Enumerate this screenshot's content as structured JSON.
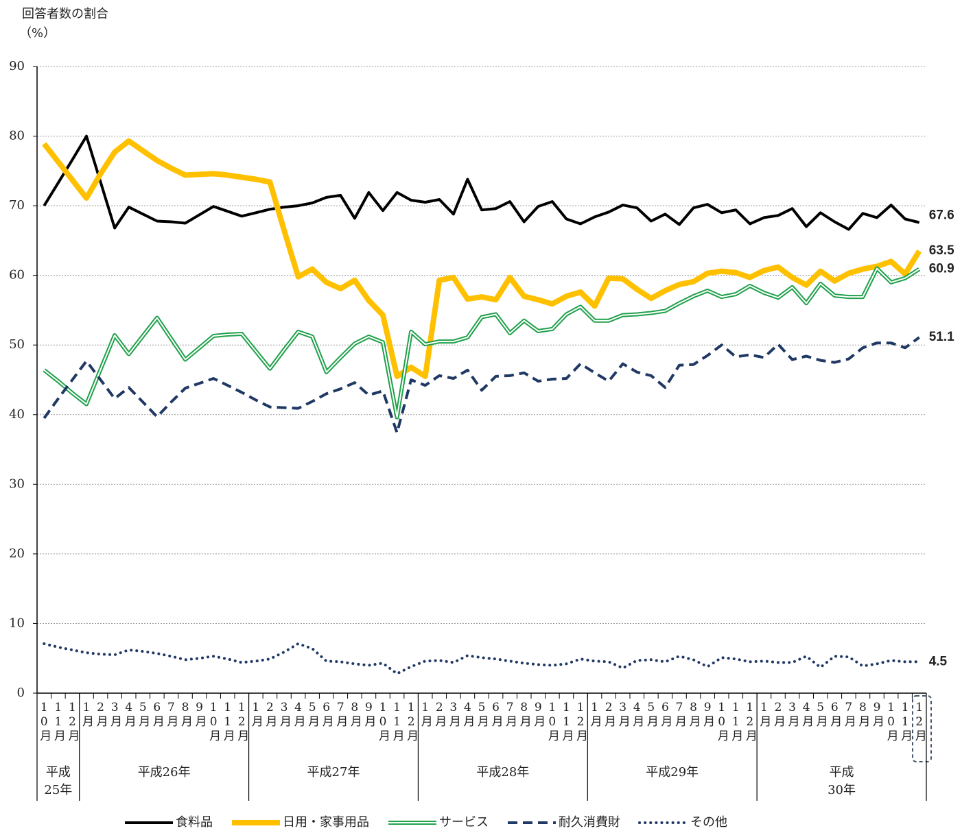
{
  "chart_data": {
    "type": "line",
    "y_label": "回答者数の割合",
    "y_unit": "（%）",
    "ylim": [
      0,
      90
    ],
    "yticks": [
      0,
      10,
      20,
      30,
      40,
      50,
      60,
      70,
      80,
      90
    ],
    "grid": true,
    "categories": [
      "10月",
      "11月",
      "12月",
      "1月",
      "2月",
      "3月",
      "4月",
      "5月",
      "6月",
      "7月",
      "8月",
      "9月",
      "10月",
      "11月",
      "12月",
      "1月",
      "2月",
      "3月",
      "4月",
      "5月",
      "6月",
      "7月",
      "8月",
      "9月",
      "10月",
      "11月",
      "12月",
      "1月",
      "2月",
      "3月",
      "4月",
      "5月",
      "6月",
      "7月",
      "8月",
      "9月",
      "10月",
      "11月",
      "12月",
      "1月",
      "2月",
      "3月",
      "4月",
      "5月",
      "6月",
      "7月",
      "8月",
      "9月",
      "10月",
      "11月",
      "12月",
      "1月",
      "2月",
      "3月",
      "4月",
      "5月",
      "6月",
      "7月",
      "8月",
      "9月",
      "10月",
      "11月",
      "12月"
    ],
    "year_labels": [
      "平成25年",
      "平成26年",
      "平成27年",
      "平成28年",
      "平成29年",
      "平成30年"
    ],
    "series": [
      {
        "name": "食料品",
        "color": "#000000",
        "style": "solid",
        "values": [
          70.0,
          73.3,
          76.6,
          80.0,
          73.4,
          66.8,
          69.8,
          68.8,
          67.8,
          67.7,
          67.5,
          68.7,
          69.9,
          69.2,
          68.5,
          69.0,
          69.5,
          69.8,
          70.0,
          70.4,
          71.2,
          71.5,
          68.2,
          71.9,
          69.3,
          71.9,
          70.8,
          70.5,
          70.9,
          68.8,
          73.8,
          69.4,
          69.6,
          70.6,
          67.7,
          69.9,
          70.6,
          68.1,
          67.4,
          68.4,
          69.1,
          70.1,
          69.7,
          67.8,
          68.8,
          67.3,
          69.7,
          70.2,
          69.0,
          69.4,
          67.4,
          68.3,
          68.6,
          69.6,
          67.0,
          69.0,
          67.7,
          66.6,
          68.9,
          68.3,
          70.1,
          68.1,
          67.6
        ]
      },
      {
        "name": "日用・家事用品",
        "color": "#ffc000",
        "style": "thick",
        "values": [
          78.9,
          76.3,
          73.7,
          71.1,
          74.6,
          77.7,
          79.3,
          77.9,
          76.5,
          75.4,
          74.4,
          74.5,
          74.6,
          74.4,
          74.1,
          73.8,
          73.4,
          66.5,
          59.8,
          60.9,
          59.0,
          58.1,
          59.3,
          56.4,
          54.3,
          45.5,
          46.8,
          45.5,
          59.3,
          59.7,
          56.6,
          56.9,
          56.5,
          59.7,
          57.0,
          56.5,
          55.9,
          57.0,
          57.6,
          55.6,
          59.6,
          59.5,
          58.0,
          56.7,
          57.8,
          58.7,
          59.1,
          60.3,
          60.6,
          60.4,
          59.7,
          60.7,
          61.2,
          59.7,
          58.6,
          60.6,
          59.2,
          60.3,
          60.9,
          61.3,
          62.0,
          60.2,
          63.5
        ]
      },
      {
        "name": "サービス",
        "color": "#1fa04a",
        "style": "double",
        "values": [
          46.4,
          44.8,
          43.1,
          41.5,
          46.5,
          51.4,
          48.7,
          51.3,
          53.9,
          50.9,
          47.9,
          49.6,
          51.3,
          51.5,
          51.6,
          49.1,
          46.6,
          49.3,
          51.9,
          51.2,
          46.1,
          48.2,
          50.2,
          51.2,
          50.4,
          39.6,
          51.9,
          50.1,
          50.5,
          50.5,
          51.1,
          54.0,
          54.4,
          51.7,
          53.5,
          52.0,
          52.3,
          54.4,
          55.5,
          53.5,
          53.5,
          54.3,
          54.4,
          54.6,
          54.9,
          56.0,
          57.0,
          57.8,
          56.9,
          57.3,
          58.5,
          57.5,
          56.8,
          58.3,
          56.0,
          58.8,
          57.1,
          56.9,
          56.9,
          61.0,
          59.0,
          59.6,
          60.9
        ]
      },
      {
        "name": "耐久消費財",
        "color": "#1f3864",
        "style": "dashed",
        "values": [
          39.5,
          42.3,
          45.0,
          47.7,
          45.0,
          42.3,
          43.9,
          41.8,
          39.7,
          41.8,
          43.8,
          44.5,
          45.2,
          44.2,
          43.2,
          42.1,
          41.1,
          41.0,
          40.9,
          41.9,
          43.0,
          43.7,
          44.6,
          42.8,
          43.4,
          37.4,
          45.0,
          44.2,
          45.6,
          45.2,
          46.4,
          43.5,
          45.5,
          45.6,
          46.0,
          44.8,
          45.1,
          45.2,
          47.3,
          46.0,
          44.8,
          47.3,
          46.1,
          45.6,
          43.9,
          47.1,
          47.2,
          48.5,
          50.0,
          48.3,
          48.6,
          48.2,
          50.1,
          47.9,
          48.4,
          47.8,
          47.5,
          48.0,
          49.6,
          50.3,
          50.3,
          49.6,
          51.1
        ]
      },
      {
        "name": "その他",
        "color": "#1f3864",
        "style": "dotted",
        "values": [
          7.1,
          6.6,
          6.2,
          5.8,
          5.6,
          5.5,
          6.2,
          6.0,
          5.7,
          5.3,
          4.8,
          5.0,
          5.3,
          4.9,
          4.4,
          4.6,
          4.9,
          5.9,
          7.1,
          6.4,
          4.6,
          4.5,
          4.2,
          4.0,
          4.3,
          2.8,
          3.8,
          4.6,
          4.7,
          4.4,
          5.4,
          5.1,
          4.9,
          4.6,
          4.3,
          4.1,
          4.0,
          4.2,
          4.9,
          4.6,
          4.5,
          3.6,
          4.7,
          4.8,
          4.5,
          5.3,
          4.8,
          3.8,
          5.1,
          4.9,
          4.5,
          4.6,
          4.4,
          4.4,
          5.3,
          3.7,
          5.3,
          5.2,
          3.9,
          4.2,
          4.7,
          4.5,
          4.5
        ]
      }
    ]
  }
}
